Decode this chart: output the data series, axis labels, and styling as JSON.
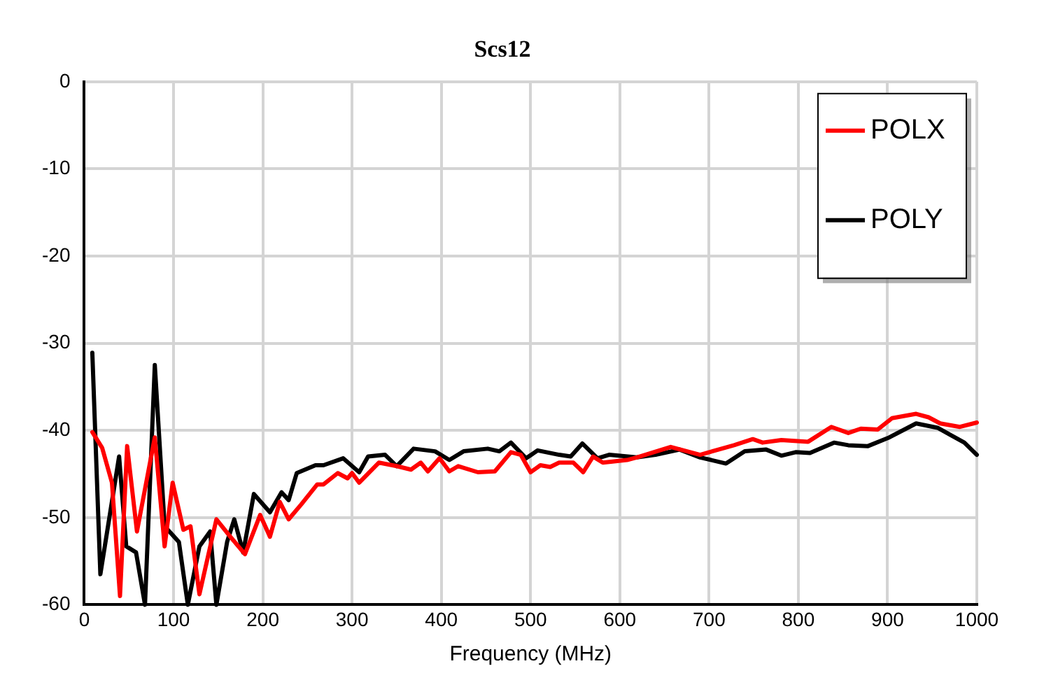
{
  "chart_data": {
    "type": "line",
    "title": "Scs12",
    "xlabel": "Frequency (MHz)",
    "xlim": [
      0,
      1000
    ],
    "xticks": [
      0,
      100,
      200,
      300,
      400,
      500,
      600,
      700,
      800,
      900,
      1000
    ],
    "ylim": [
      -60,
      0
    ],
    "yticks": [
      -60,
      -50,
      -40,
      -30,
      -20,
      -10,
      0
    ],
    "grid": true,
    "legend": "top right",
    "marker": "none",
    "line_style": "solid",
    "series": [
      {
        "name": "POLX",
        "color": "#ff0000",
        "x": [
          9,
          20,
          31,
          40,
          48,
          59,
          79,
          90,
          99,
          111,
          119,
          129,
          148,
          162,
          180,
          197,
          208,
          219,
          229,
          243,
          261,
          268,
          284,
          295,
          300,
          308,
          330,
          350,
          366,
          377,
          385,
          398,
          409,
          419,
          441,
          460,
          478,
          489,
          500,
          511,
          522,
          532,
          548,
          559,
          570,
          581,
          608,
          619,
          657,
          690,
          728,
          749,
          760,
          781,
          811,
          837,
          856,
          870,
          889,
          905,
          932,
          946,
          959,
          981,
          1000
        ],
        "values": [
          -40.2,
          -42,
          -46,
          -59,
          -41.8,
          -51.6,
          -40.8,
          -53.3,
          -46,
          -51.4,
          -51,
          -58.8,
          -50.2,
          -52,
          -54.2,
          -49.7,
          -52.2,
          -48.2,
          -50.2,
          -48.5,
          -46.2,
          -46.2,
          -44.9,
          -45.5,
          -44.9,
          -46,
          -43.7,
          -44.1,
          -44.5,
          -43.7,
          -44.7,
          -43.2,
          -44.7,
          -44.1,
          -44.8,
          -44.7,
          -42.5,
          -42.8,
          -44.8,
          -44,
          -44.2,
          -43.7,
          -43.7,
          -44.8,
          -43,
          -43.7,
          -43.4,
          -43.1,
          -41.9,
          -42.8,
          -41.7,
          -41,
          -41.4,
          -41.1,
          -41.3,
          -39.6,
          -40.3,
          -39.8,
          -39.9,
          -38.6,
          -38.1,
          -38.5,
          -39.2,
          -39.6,
          -39.1
        ]
      },
      {
        "name": "POLY",
        "color": "#000000",
        "x": [
          9,
          18,
          39,
          47,
          58,
          68,
          79,
          90,
          106,
          116,
          129,
          141,
          148,
          160,
          168,
          178,
          190,
          208,
          221,
          229,
          238,
          259,
          268,
          290,
          308,
          318,
          337,
          350,
          369,
          393,
          409,
          425,
          452,
          465,
          478,
          495,
          508,
          532,
          545,
          558,
          575,
          588,
          619,
          640,
          667,
          690,
          719,
          740,
          764,
          781,
          797,
          813,
          840,
          856,
          878,
          902,
          932,
          956,
          970,
          986,
          1000
        ],
        "values": [
          -31.1,
          -56.5,
          -43,
          -53.3,
          -54,
          -60,
          -32.5,
          -51,
          -52.8,
          -60,
          -53.3,
          -51.6,
          -60,
          -52.8,
          -50.2,
          -54,
          -47.3,
          -49.4,
          -47.1,
          -48,
          -44.9,
          -44,
          -44,
          -43.2,
          -44.8,
          -43,
          -42.8,
          -44.1,
          -42.1,
          -42.4,
          -43.4,
          -42.4,
          -42.1,
          -42.4,
          -41.4,
          -43.2,
          -42.3,
          -42.8,
          -43,
          -41.5,
          -43.2,
          -42.8,
          -43.1,
          -42.8,
          -42.2,
          -43.1,
          -43.8,
          -42.4,
          -42.2,
          -42.9,
          -42.5,
          -42.6,
          -41.4,
          -41.7,
          -41.8,
          -40.8,
          -39.2,
          -39.7,
          -40.5,
          -41.4,
          -42.8
        ]
      }
    ]
  }
}
